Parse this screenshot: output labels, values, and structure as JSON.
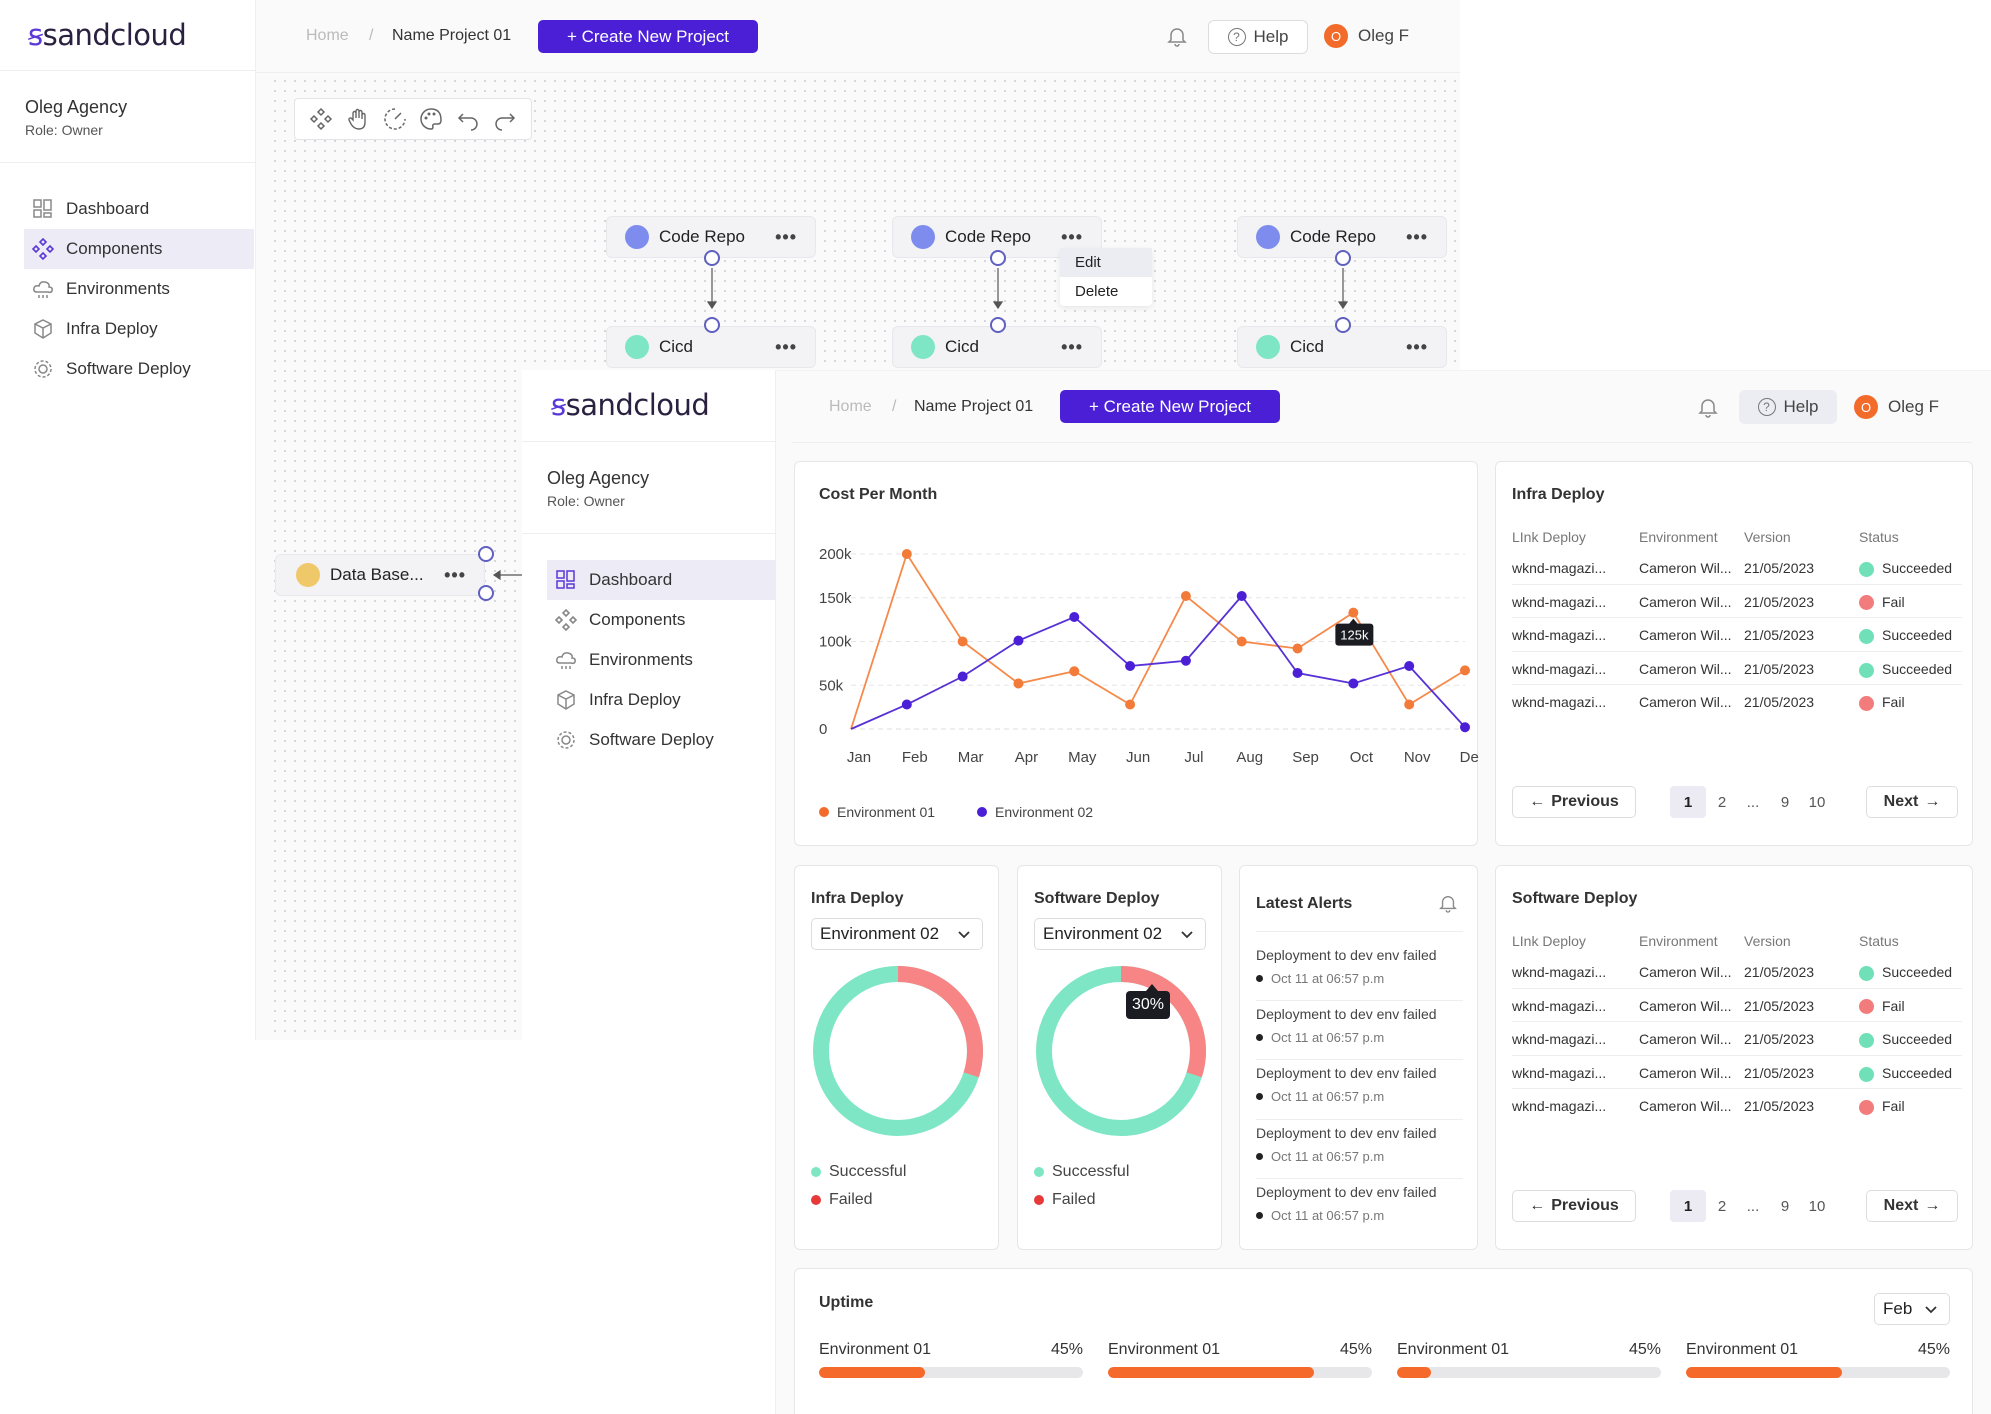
{
  "back": {
    "logo": "sandcloud",
    "org": "Oleg Agency",
    "role": "Role: Owner",
    "nav": [
      {
        "label": "Dashboard",
        "icon": "dashboard-icon",
        "active": false
      },
      {
        "label": "Components",
        "icon": "components-icon",
        "active": true
      },
      {
        "label": "Environments",
        "icon": "environments-icon",
        "active": false
      },
      {
        "label": "Infra Deploy",
        "icon": "infra-deploy-icon",
        "active": false
      },
      {
        "label": "Software Deploy",
        "icon": "software-deploy-icon",
        "active": false
      }
    ],
    "breadcrumb_home": "Home",
    "breadcrumb_sep": "/",
    "breadcrumb_current": "Name Project 01",
    "cta": "+ Create New Project",
    "help": "Help",
    "user_initial": "O",
    "user_name": "Oleg F",
    "nodes": {
      "repo1": "Code Repo",
      "repo2": "Code Repo",
      "repo3": "Code Repo",
      "cicd1": "Cicd",
      "cicd2": "Cicd",
      "cicd3": "Cicd",
      "db": "Data Base...",
      "more": "•••"
    },
    "context_menu": [
      "Edit",
      "Delete"
    ]
  },
  "front": {
    "logo": "sandcloud",
    "org": "Oleg Agency",
    "role": "Role: Owner",
    "nav": [
      {
        "label": "Dashboard",
        "active": true
      },
      {
        "label": "Components",
        "active": false
      },
      {
        "label": "Environments",
        "active": false
      },
      {
        "label": "Infra Deploy",
        "active": false
      },
      {
        "label": "Software Deploy",
        "active": false
      }
    ],
    "breadcrumb_home": "Home",
    "breadcrumb_sep": "/",
    "breadcrumb_current": "Name Project 01",
    "cta": "+ Create New Project",
    "help": "Help",
    "user_initial": "O",
    "user_name": "Oleg F"
  },
  "cost_card": {
    "title": "Cost Per Month",
    "tooltip": "125k"
  },
  "chart_data": {
    "type": "line",
    "title": "Cost Per Month",
    "categories": [
      "Jan",
      "Feb",
      "Mar",
      "Apr",
      "May",
      "Jun",
      "Jul",
      "Aug",
      "Sep",
      "Oct",
      "Nov",
      "Dec"
    ],
    "y_ticks": [
      "200k",
      "150k",
      "100k",
      "50k",
      "0"
    ],
    "ylim": [
      0,
      200000
    ],
    "grid": true,
    "legend_position": "bottom-left",
    "series": [
      {
        "name": "Environment 01",
        "color": "#f58a4b",
        "values": [
          0,
          200000,
          100000,
          52000,
          66000,
          28000,
          152000,
          100000,
          92000,
          133000,
          28000,
          67000
        ]
      },
      {
        "name": "Environment 02",
        "color": "#5631d6",
        "values": [
          0,
          28000,
          60000,
          101000,
          128000,
          72000,
          78000,
          152000,
          64000,
          52000,
          72000,
          2000
        ]
      }
    ]
  },
  "infra_table": {
    "title": "Infra Deploy",
    "headers": [
      "LInk Deploy",
      "Environment",
      "Version",
      "Status"
    ],
    "rows": [
      {
        "link": "wknd-magazi...",
        "env": "Cameron Wil...",
        "version": "21/05/2023",
        "status": "Succeeded",
        "color": "#6fe0b8"
      },
      {
        "link": "wknd-magazi...",
        "env": "Cameron Wil...",
        "version": "21/05/2023",
        "status": "Fail",
        "color": "#f27b7b"
      },
      {
        "link": "wknd-magazi...",
        "env": "Cameron Wil...",
        "version": "21/05/2023",
        "status": "Succeeded",
        "color": "#6fe0b8"
      },
      {
        "link": "wknd-magazi...",
        "env": "Cameron Wil...",
        "version": "21/05/2023",
        "status": "Succeeded",
        "color": "#6fe0b8"
      },
      {
        "link": "wknd-magazi...",
        "env": "Cameron Wil...",
        "version": "21/05/2023",
        "status": "Fail",
        "color": "#f27b7b"
      }
    ],
    "prev": "Previous",
    "next": "Next",
    "pages": [
      "1",
      "2",
      "...",
      "9",
      "10"
    ]
  },
  "software_table": {
    "title": "Software Deploy",
    "headers": [
      "LInk Deploy",
      "Environment",
      "Version",
      "Status"
    ],
    "rows": [
      {
        "link": "wknd-magazi...",
        "env": "Cameron Wil...",
        "version": "21/05/2023",
        "status": "Succeeded",
        "color": "#6fe0b8"
      },
      {
        "link": "wknd-magazi...",
        "env": "Cameron Wil...",
        "version": "21/05/2023",
        "status": "Fail",
        "color": "#f27b7b"
      },
      {
        "link": "wknd-magazi...",
        "env": "Cameron Wil...",
        "version": "21/05/2023",
        "status": "Succeeded",
        "color": "#6fe0b8"
      },
      {
        "link": "wknd-magazi...",
        "env": "Cameron Wil...",
        "version": "21/05/2023",
        "status": "Succeeded",
        "color": "#6fe0b8"
      },
      {
        "link": "wknd-magazi...",
        "env": "Cameron Wil...",
        "version": "21/05/2023",
        "status": "Fail",
        "color": "#f27b7b"
      }
    ],
    "prev": "Previous",
    "next": "Next",
    "pages": [
      "1",
      "2",
      "...",
      "9",
      "10"
    ]
  },
  "infra_donut": {
    "title": "Infra Deploy",
    "select": "Environment 02",
    "success_label": "Successful",
    "failed_label": "Failed",
    "failed_fraction": 0.3,
    "success_color": "#7ee6c4",
    "failed_color": "#f78585"
  },
  "software_donut": {
    "title": "Software Deploy",
    "select": "Environment 02",
    "success_label": "Successful",
    "failed_label": "Failed",
    "failed_fraction": 0.3,
    "tooltip": "30%",
    "success_color": "#7ee6c4",
    "failed_color": "#f78585"
  },
  "alerts": {
    "title": "Latest Alerts",
    "items": [
      {
        "text": "Deployment to dev env failed",
        "date": "Oct 11 at 06:57 p.m"
      },
      {
        "text": "Deployment to dev env failed",
        "date": "Oct 11 at 06:57 p.m"
      },
      {
        "text": "Deployment to dev env failed",
        "date": "Oct 11 at 06:57 p.m"
      },
      {
        "text": "Deployment to dev env failed",
        "date": "Oct 11 at 06:57 p.m"
      },
      {
        "text": "Deployment to dev env failed",
        "date": "Oct 11 at 06:57 p.m"
      }
    ]
  },
  "uptime": {
    "title": "Uptime",
    "month": "Feb",
    "items": [
      {
        "label": "Environment 01",
        "value": "45%",
        "fill": 0.4
      },
      {
        "label": "Environment 01",
        "value": "45%",
        "fill": 0.78
      },
      {
        "label": "Environment 01",
        "value": "45%",
        "fill": 0.13
      },
      {
        "label": "Environment 01",
        "value": "45%",
        "fill": 0.59
      }
    ]
  }
}
